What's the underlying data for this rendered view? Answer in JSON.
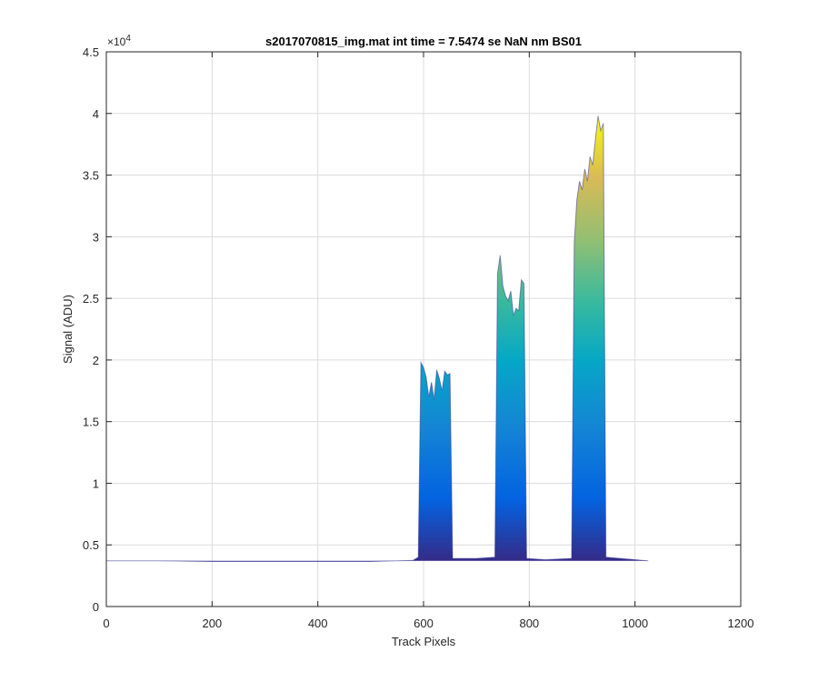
{
  "chart_data": {
    "type": "area",
    "title": "s2017070815_img.mat int time = 7.5474 se  NaN nm BS01",
    "xlabel": "Track Pixels",
    "ylabel": "Signal (ADU)",
    "xlim": [
      0,
      1200
    ],
    "ylim": [
      0,
      45000
    ],
    "xticks": [
      0,
      200,
      400,
      600,
      800,
      1000,
      1200
    ],
    "yticks": [
      0,
      5000,
      10000,
      15000,
      20000,
      25000,
      30000,
      35000,
      40000,
      45000
    ],
    "ytick_labels": [
      "0",
      "0.5",
      "1",
      "1.5",
      "2",
      "2.5",
      "3",
      "3.5",
      "4",
      "4.5"
    ],
    "y_exponent_base": "×10",
    "y_exponent_power": "4",
    "grid": true,
    "colormap": "parula",
    "baseline": 3700,
    "x": [
      0,
      100,
      200,
      300,
      400,
      500,
      580,
      590,
      595,
      600,
      605,
      610,
      615,
      620,
      625,
      630,
      635,
      640,
      645,
      650,
      655,
      700,
      735,
      740,
      745,
      750,
      755,
      760,
      765,
      770,
      775,
      780,
      785,
      790,
      795,
      830,
      880,
      885,
      890,
      895,
      900,
      905,
      910,
      915,
      920,
      925,
      930,
      935,
      940,
      945,
      1000,
      1025
    ],
    "y": [
      3700,
      3700,
      3650,
      3650,
      3650,
      3650,
      3750,
      4000,
      19800,
      19400,
      18600,
      17000,
      18200,
      16800,
      19200,
      18500,
      17500,
      19100,
      18800,
      18900,
      3900,
      3900,
      4000,
      27000,
      28500,
      26000,
      25200,
      24800,
      25600,
      23600,
      24200,
      24000,
      26500,
      26200,
      3900,
      3800,
      3900,
      29500,
      33000,
      34500,
      33800,
      35500,
      34500,
      36500,
      35800,
      37800,
      39800,
      38600,
      39200,
      4000,
      3800,
      3700
    ]
  }
}
